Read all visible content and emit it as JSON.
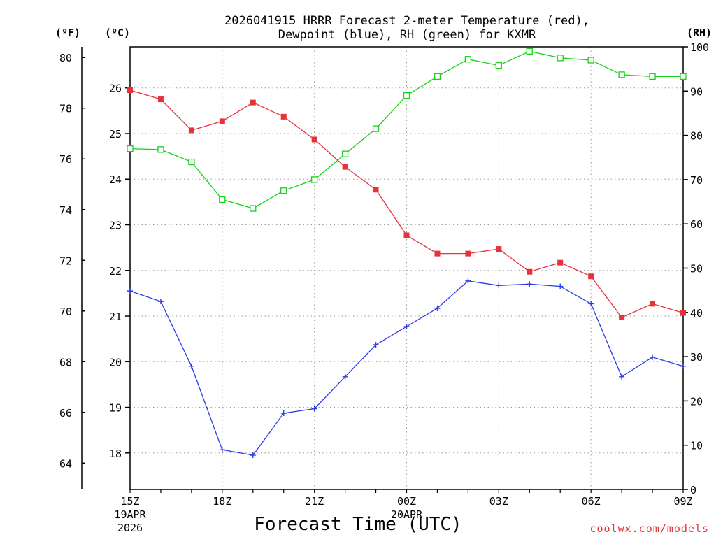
{
  "chart_data": {
    "type": "line",
    "title_line1": "2026041915 HRRR Forecast 2-meter Temperature (red),",
    "title_line2": "Dewpoint (blue), RH (green) for KXMR",
    "xlabel": "Forecast Time (UTC)",
    "credit": "coolwx.com/models",
    "unit_f": "(ºF)",
    "unit_c": "(ºC)",
    "unit_rh": "(RH)",
    "x_hours": [
      0,
      1,
      2,
      3,
      4,
      5,
      6,
      7,
      8,
      9,
      10,
      11,
      12,
      13,
      14,
      15,
      16,
      17,
      18
    ],
    "x_ticks": [
      {
        "hour": 0,
        "label": "15Z",
        "sub1": "19APR",
        "sub2": "2026"
      },
      {
        "hour": 3,
        "label": "18Z",
        "sub1": "",
        "sub2": ""
      },
      {
        "hour": 6,
        "label": "21Z",
        "sub1": "",
        "sub2": ""
      },
      {
        "hour": 9,
        "label": "00Z",
        "sub1": "20APR",
        "sub2": ""
      },
      {
        "hour": 12,
        "label": "03Z",
        "sub1": "",
        "sub2": ""
      },
      {
        "hour": 15,
        "label": "06Z",
        "sub1": "",
        "sub2": ""
      },
      {
        "hour": 18,
        "label": "09Z",
        "sub1": "",
        "sub2": ""
      }
    ],
    "c_range": [
      17.2,
      26.9
    ],
    "c_ticks": [
      18,
      19,
      20,
      21,
      22,
      23,
      24,
      25,
      26
    ],
    "f_ticks": [
      64,
      66,
      68,
      70,
      72,
      74,
      76,
      78,
      80
    ],
    "rh_range": [
      0,
      100
    ],
    "rh_ticks": [
      0,
      10,
      20,
      30,
      40,
      50,
      60,
      70,
      80,
      90,
      100
    ],
    "grid": true,
    "series": [
      {
        "name": "Temperature",
        "color": "#e8323a",
        "marker": "filled-square",
        "values_c": [
          25.95,
          25.75,
          25.07,
          25.27,
          25.68,
          25.37,
          24.87,
          24.27,
          23.77,
          22.77,
          22.37,
          22.37,
          22.47,
          21.97,
          22.17,
          21.87,
          20.97,
          21.27,
          21.07
        ]
      },
      {
        "name": "Dewpoint",
        "color": "#2a3be6",
        "marker": "plus",
        "values_c": [
          21.55,
          21.32,
          19.9,
          18.07,
          17.95,
          18.87,
          18.97,
          19.67,
          20.37,
          20.77,
          21.17,
          21.77,
          21.67,
          21.7,
          21.65,
          21.27,
          19.67,
          20.1,
          19.9
        ]
      },
      {
        "name": "RH",
        "color": "#19d119",
        "marker": "open-square",
        "values_rh": [
          77,
          76.8,
          74,
          65.5,
          63.5,
          67.5,
          70,
          75.8,
          81.5,
          89,
          93.3,
          97.2,
          95.8,
          99,
          97.5,
          97,
          93.7,
          93.3,
          93.3
        ]
      }
    ]
  }
}
